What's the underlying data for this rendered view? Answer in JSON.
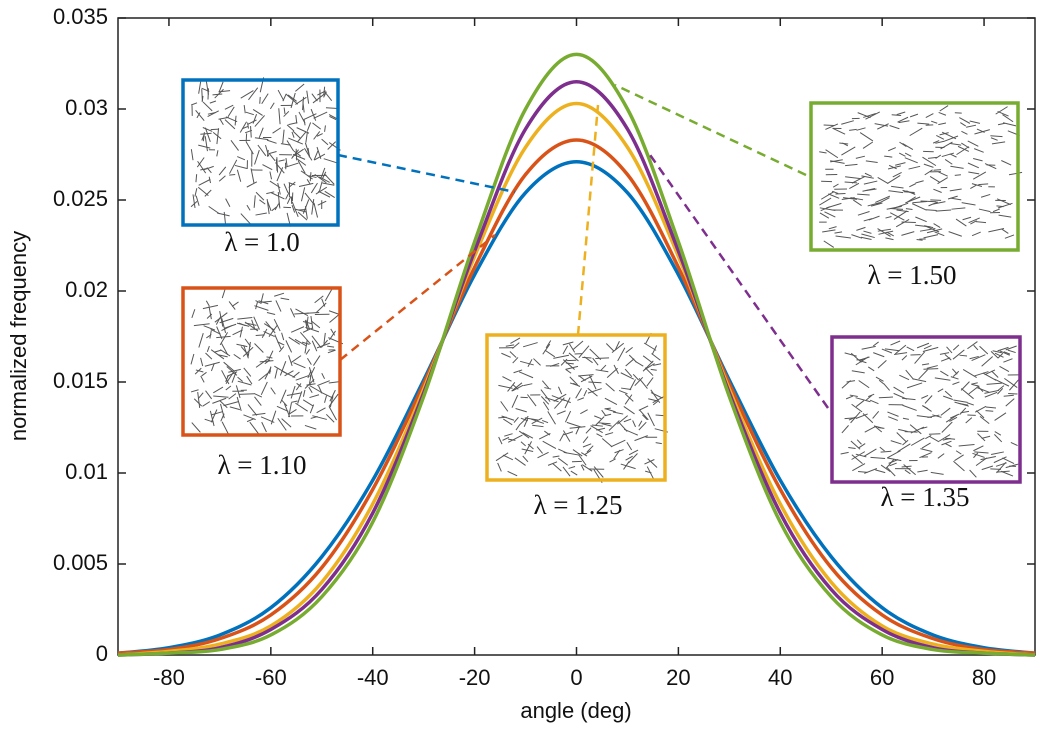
{
  "chart_data": {
    "type": "line",
    "x_label": "angle (deg)",
    "y_label": "normalized frequency",
    "x": [
      -90,
      -80,
      -70,
      -60,
      -50,
      -40,
      -30,
      -20,
      -10,
      0,
      10,
      20,
      30,
      40,
      50,
      60,
      70,
      80,
      90
    ],
    "series": [
      {
        "name": "λ = 1.0",
        "color": "#0072bd",
        "values": [
          0.0001,
          0.0004,
          0.0011,
          0.0026,
          0.0054,
          0.0096,
          0.0151,
          0.0209,
          0.0254,
          0.0271,
          0.0254,
          0.0209,
          0.0151,
          0.0096,
          0.0054,
          0.0026,
          0.0011,
          0.0004,
          0.0001
        ]
      },
      {
        "name": "λ = 1.10",
        "color": "#d95319",
        "values": [
          0.0001,
          0.0003,
          0.0009,
          0.0022,
          0.0048,
          0.0091,
          0.0149,
          0.0213,
          0.0264,
          0.0283,
          0.0264,
          0.0213,
          0.0149,
          0.0091,
          0.0048,
          0.0022,
          0.0009,
          0.0003,
          0.0001
        ]
      },
      {
        "name": "λ = 1.25",
        "color": "#edb120",
        "values": [
          0.0,
          0.0002,
          0.0006,
          0.0016,
          0.004,
          0.0083,
          0.0146,
          0.0219,
          0.0279,
          0.0303,
          0.0279,
          0.0219,
          0.0146,
          0.0083,
          0.004,
          0.0016,
          0.0006,
          0.0002,
          0.0
        ]
      },
      {
        "name": "λ = 1.35",
        "color": "#7e2f8e",
        "values": [
          0.0,
          0.0001,
          0.0004,
          0.0014,
          0.0036,
          0.0078,
          0.0144,
          0.0222,
          0.0289,
          0.0315,
          0.0289,
          0.0222,
          0.0144,
          0.0078,
          0.0036,
          0.0014,
          0.0004,
          0.0001,
          0.0
        ]
      },
      {
        "name": "λ = 1.50",
        "color": "#77ac30",
        "values": [
          0.0,
          0.0001,
          0.0003,
          0.0011,
          0.0032,
          0.0073,
          0.0142,
          0.0227,
          0.03,
          0.033,
          0.03,
          0.0227,
          0.0142,
          0.0073,
          0.0032,
          0.0011,
          0.0003,
          0.0001,
          0.0
        ]
      }
    ],
    "xlim": [
      -90,
      90
    ],
    "xticks": [
      -80,
      -60,
      -40,
      -20,
      0,
      20,
      40,
      60,
      80
    ],
    "ylim": [
      0,
      0.035
    ],
    "yticks": [
      0,
      0.005,
      0.01,
      0.015,
      0.02,
      0.025,
      0.03,
      0.035
    ],
    "grid": false
  }
}
